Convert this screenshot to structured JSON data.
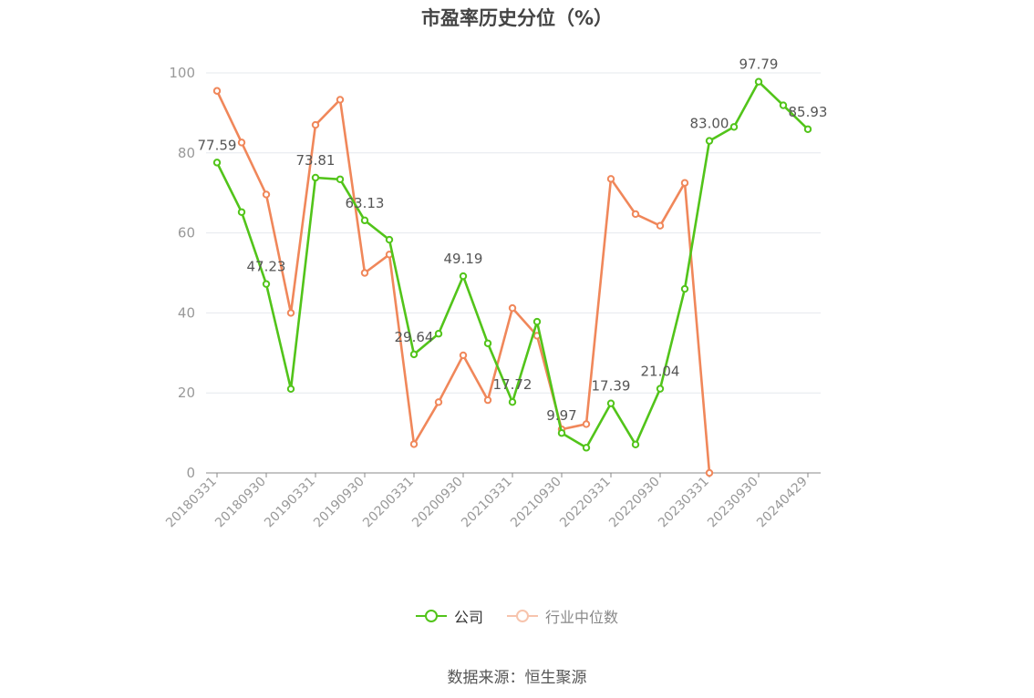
{
  "title": "市盈率历史分位（%）",
  "source": "数据来源：恒生聚源",
  "legend": {
    "company": "公司",
    "industry": "行业中位数"
  },
  "colors": {
    "company": "#52c41a",
    "industry": "#f0875a",
    "axis": "#999999",
    "grid": "#e6e8ee",
    "label": "#555555"
  },
  "chart_data": {
    "type": "line",
    "title": "市盈率历史分位（%）",
    "ylim": [
      0,
      100
    ],
    "yticks": [
      0,
      20,
      40,
      60,
      80,
      100
    ],
    "grid": true,
    "legend_position": "bottom",
    "x": [
      "20180331",
      "20180630",
      "20180930",
      "20181231",
      "20190331",
      "20190630",
      "20190930",
      "20191231",
      "20200331",
      "20200630",
      "20200930",
      "20201231",
      "20210331",
      "20210630",
      "20210930",
      "20211231",
      "20220331",
      "20220630",
      "20220930",
      "20221231",
      "20230331",
      "20230630",
      "20230930",
      "20231231",
      "20240429"
    ],
    "xtick_labels": [
      "20180331",
      "20180930",
      "20190331",
      "20190930",
      "20200331",
      "20200930",
      "20210331",
      "20210930",
      "20220331",
      "20220930",
      "20230331",
      "20230930",
      "20240429"
    ],
    "series": [
      {
        "name": "公司",
        "values": [
          77.59,
          65.2,
          47.23,
          21.0,
          73.81,
          73.4,
          63.13,
          58.3,
          29.64,
          34.8,
          49.19,
          32.4,
          17.72,
          37.8,
          9.97,
          6.3,
          17.39,
          7.1,
          21.04,
          46.0,
          83.0,
          86.5,
          97.79,
          91.9,
          85.93
        ],
        "labeled": [
          77.59,
          null,
          47.23,
          null,
          73.81,
          null,
          63.13,
          null,
          29.64,
          null,
          49.19,
          null,
          17.72,
          null,
          9.97,
          null,
          17.39,
          null,
          21.04,
          null,
          83.0,
          null,
          97.79,
          null,
          85.93
        ],
        "label_text": [
          "77.59",
          "",
          "47.23",
          "",
          "73.81",
          "",
          "63.13",
          "",
          "29.64",
          "",
          "49.19",
          "",
          "17.72",
          "",
          "9.97",
          "",
          "17.39",
          "",
          "21.04",
          "",
          "83.00",
          "",
          "97.79",
          "",
          "85.93"
        ]
      },
      {
        "name": "行业中位数",
        "values": [
          95.5,
          82.6,
          69.6,
          40.0,
          87.0,
          93.3,
          50.0,
          54.6,
          7.2,
          17.7,
          29.4,
          18.2,
          41.2,
          34.3,
          10.9,
          12.2,
          73.5,
          64.7,
          61.8,
          72.5,
          0.0,
          null,
          null,
          null,
          null
        ]
      }
    ]
  }
}
